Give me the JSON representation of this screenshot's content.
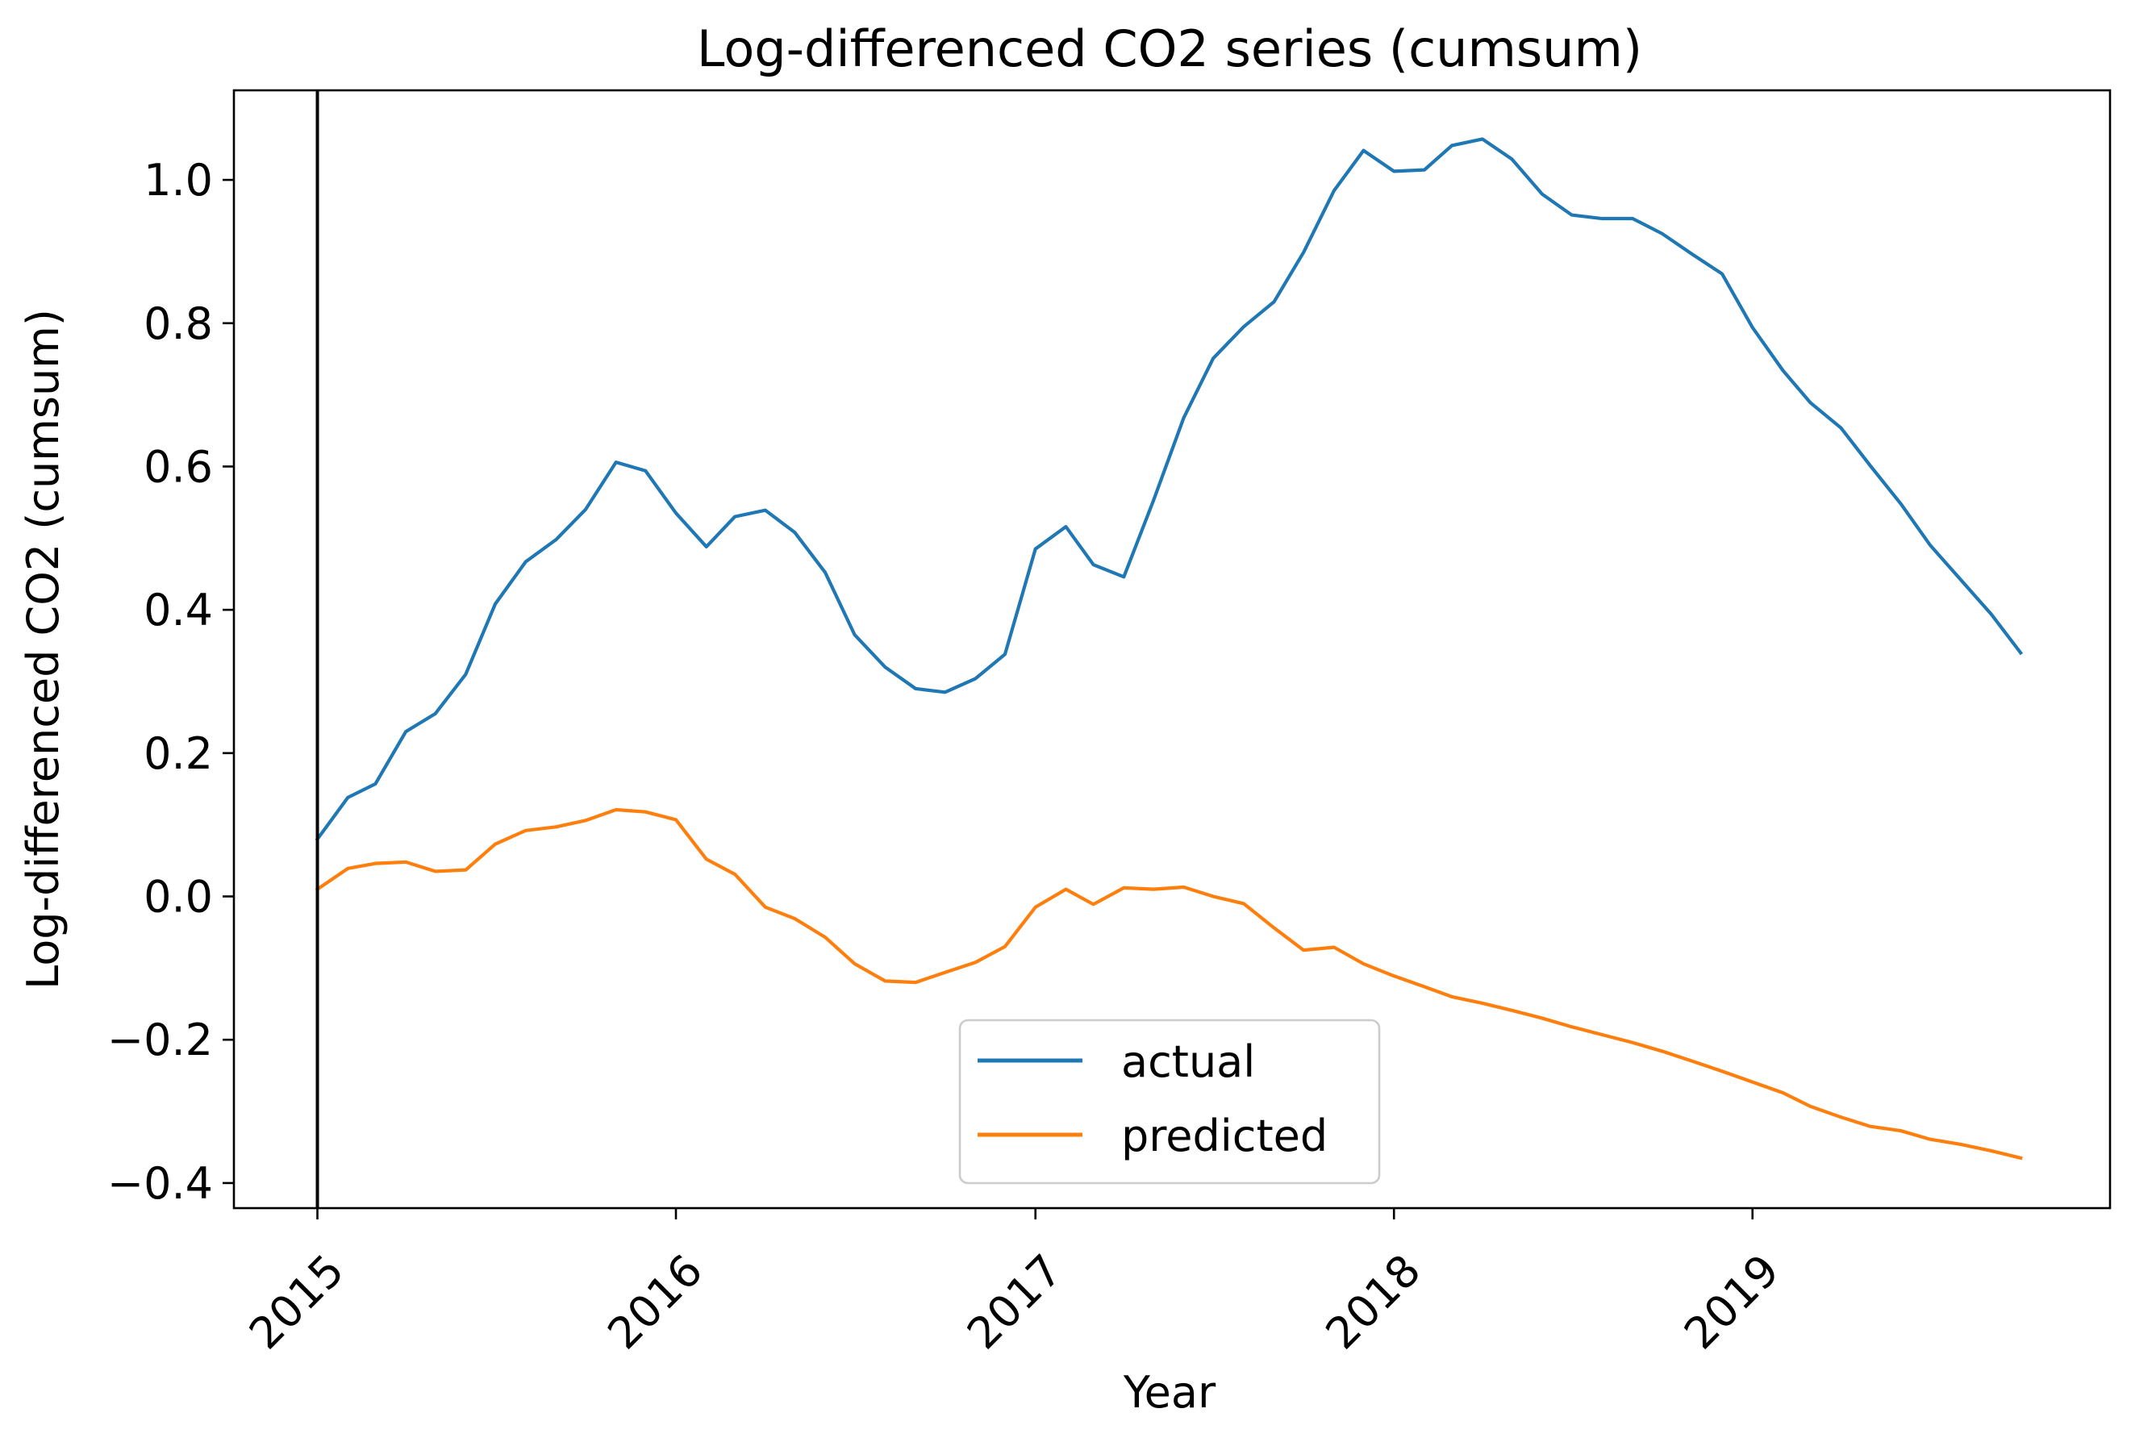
{
  "chart_data": {
    "type": "line",
    "title": "Log-differenced CO2 series (cumsum)",
    "xlabel": "Year",
    "ylabel": "Log-differenced CO2 (cumsum)",
    "xlim": [
      "2014-10-08",
      "2019-12-31"
    ],
    "ylim": [
      -0.435,
      1.125
    ],
    "x_ticks": [
      "2015",
      "2016",
      "2017",
      "2018",
      "2019"
    ],
    "x_tick_rotation_deg": 45,
    "y_ticks": [
      {
        "value": -0.4,
        "label": "−0.4"
      },
      {
        "value": -0.2,
        "label": "−0.2"
      },
      {
        "value": 0.0,
        "label": "0.0"
      },
      {
        "value": 0.2,
        "label": "0.2"
      },
      {
        "value": 0.4,
        "label": "0.4"
      },
      {
        "value": 0.6,
        "label": "0.6"
      },
      {
        "value": 0.8,
        "label": "0.8"
      },
      {
        "value": 1.0,
        "label": "1.0"
      }
    ],
    "grid": false,
    "legend_position": "lower-center",
    "vertical_line": {
      "x": "2015-01-01",
      "color": "#000000"
    },
    "x": [
      "2015-01",
      "2015-02",
      "2015-03",
      "2015-04",
      "2015-05",
      "2015-06",
      "2015-07",
      "2015-08",
      "2015-09",
      "2015-10",
      "2015-11",
      "2015-12",
      "2016-01",
      "2016-02",
      "2016-03",
      "2016-04",
      "2016-05",
      "2016-06",
      "2016-07",
      "2016-08",
      "2016-09",
      "2016-10",
      "2016-11",
      "2016-12",
      "2017-01",
      "2017-02",
      "2017-03",
      "2017-04",
      "2017-05",
      "2017-06",
      "2017-07",
      "2017-08",
      "2017-09",
      "2017-10",
      "2017-11",
      "2017-12",
      "2018-01",
      "2018-02",
      "2018-03",
      "2018-04",
      "2018-05",
      "2018-06",
      "2018-07",
      "2018-08",
      "2018-09",
      "2018-10",
      "2018-11",
      "2018-12",
      "2019-01",
      "2019-02",
      "2019-03",
      "2019-04",
      "2019-05",
      "2019-06",
      "2019-07",
      "2019-08",
      "2019-09",
      "2019-10"
    ],
    "series": [
      {
        "name": "actual",
        "color": "#1f77b4",
        "values": [
          0.08,
          0.138,
          0.157,
          0.23,
          0.255,
          0.31,
          0.408,
          0.467,
          0.498,
          0.54,
          0.606,
          0.594,
          0.535,
          0.488,
          0.53,
          0.539,
          0.508,
          0.452,
          0.365,
          0.32,
          0.29,
          0.285,
          0.304,
          0.338,
          0.485,
          0.516,
          0.463,
          0.446,
          0.552,
          0.668,
          0.751,
          0.795,
          0.83,
          0.899,
          0.985,
          1.041,
          1.012,
          1.014,
          1.048,
          1.057,
          1.029,
          0.98,
          0.951,
          0.946,
          0.946,
          0.925,
          0.896,
          0.869,
          0.794,
          0.734,
          0.689,
          0.654,
          0.601,
          0.548,
          0.49,
          0.442,
          0.394,
          0.34
        ]
      },
      {
        "name": "predicted",
        "color": "#ff7f0e",
        "values": [
          0.01,
          0.039,
          0.046,
          0.048,
          0.035,
          0.037,
          0.073,
          0.092,
          0.097,
          0.106,
          0.121,
          0.118,
          0.107,
          0.052,
          0.031,
          -0.015,
          -0.031,
          -0.057,
          -0.094,
          -0.118,
          -0.12,
          -0.106,
          -0.092,
          -0.07,
          -0.015,
          0.01,
          -0.011,
          0.012,
          0.01,
          0.013,
          0.0,
          -0.01,
          -0.044,
          -0.075,
          -0.071,
          -0.094,
          -0.111,
          -0.126,
          -0.14,
          -0.149,
          -0.159,
          -0.17,
          -0.182,
          -0.193,
          -0.204,
          -0.216,
          -0.23,
          -0.244,
          -0.259,
          -0.274,
          -0.293,
          -0.308,
          -0.321,
          -0.327,
          -0.339,
          -0.346,
          -0.355,
          -0.365
        ]
      }
    ]
  }
}
